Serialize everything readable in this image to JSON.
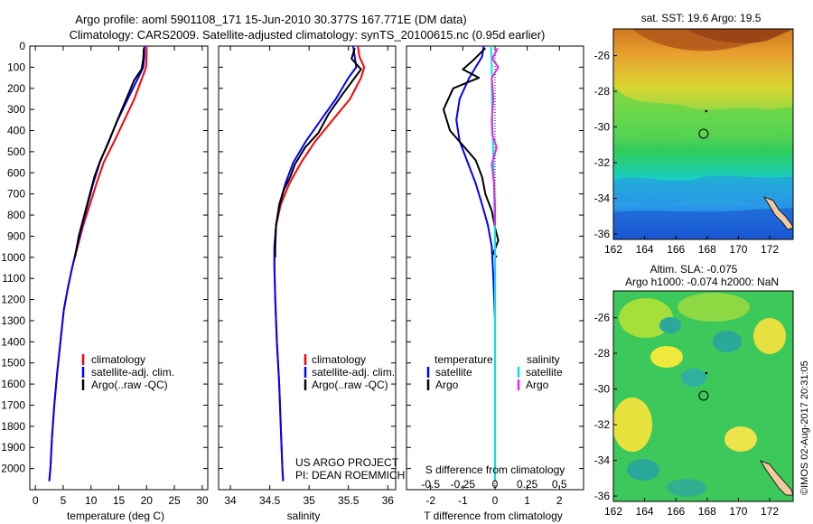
{
  "header": {
    "line1": "Argo profile: aoml 5901108_171 15-Jun-2010 30.377S 167.771E (DM data)",
    "line2": "Climatology: CARS2009. Satellite-adjusted climatology: synTS_20100615.nc (0.95d earlier)"
  },
  "colors": {
    "climatology": "#ff0000",
    "satellite": "#0000ff",
    "argo": "#000000",
    "sal_satellite": "#00e5ee",
    "sal_argo": "#ee22ee"
  },
  "chart_data": [
    {
      "type": "line",
      "xlabel": "temperature (deg C)",
      "ylabel": "",
      "xlim": [
        -1,
        31
      ],
      "ylim": [
        2100,
        0
      ],
      "xticks": [
        0,
        5,
        10,
        15,
        20,
        25,
        30
      ],
      "yticks": [
        0,
        100,
        200,
        300,
        400,
        500,
        600,
        700,
        800,
        900,
        1000,
        1100,
        1200,
        1300,
        1400,
        1500,
        1600,
        1700,
        1800,
        1900,
        2000
      ],
      "legend": [
        "climatology",
        "satellite-adj. clim.",
        "Argo(..raw -QC)"
      ],
      "legend_position": "lower-right",
      "series": [
        {
          "name": "climatology",
          "color": "#ff0000",
          "points": [
            [
              20.0,
              0
            ],
            [
              20.0,
              50
            ],
            [
              19.9,
              100
            ],
            [
              19.2,
              150
            ],
            [
              17.8,
              250
            ],
            [
              16.0,
              350
            ],
            [
              14.2,
              450
            ],
            [
              12.3,
              550
            ],
            [
              11.0,
              650
            ],
            [
              9.8,
              750
            ],
            [
              8.6,
              850
            ],
            [
              7.6,
              950
            ],
            [
              6.6,
              1050
            ],
            [
              5.8,
              1150
            ],
            [
              5.1,
              1250
            ],
            [
              4.5,
              1400
            ],
            [
              3.9,
              1550
            ],
            [
              3.4,
              1700
            ],
            [
              3.0,
              1850
            ],
            [
              2.7,
              2000
            ],
            [
              2.5,
              2060
            ]
          ]
        },
        {
          "name": "satellite-adj. clim.",
          "color": "#0000ff",
          "points": [
            [
              19.6,
              0
            ],
            [
              19.6,
              50
            ],
            [
              19.4,
              100
            ],
            [
              18.5,
              150
            ],
            [
              16.6,
              250
            ],
            [
              14.8,
              350
            ],
            [
              13.2,
              450
            ],
            [
              11.6,
              550
            ],
            [
              10.4,
              650
            ],
            [
              9.4,
              750
            ],
            [
              8.4,
              850
            ],
            [
              7.5,
              950
            ],
            [
              6.6,
              1050
            ],
            [
              5.8,
              1150
            ],
            [
              5.1,
              1250
            ],
            [
              4.5,
              1400
            ],
            [
              3.9,
              1550
            ],
            [
              3.4,
              1700
            ],
            [
              3.0,
              1850
            ],
            [
              2.7,
              2000
            ],
            [
              2.5,
              2060
            ]
          ]
        },
        {
          "name": "Argo(..raw -QC)",
          "color": "#000000",
          "points": [
            [
              19.5,
              10
            ],
            [
              19.4,
              60
            ],
            [
              19.1,
              110
            ],
            [
              17.8,
              160
            ],
            [
              16.2,
              260
            ],
            [
              14.6,
              360
            ],
            [
              13.1,
              460
            ],
            [
              11.7,
              540
            ],
            [
              10.6,
              620
            ],
            [
              9.6,
              720
            ],
            [
              8.6,
              820
            ],
            [
              7.8,
              900
            ],
            [
              7.1,
              1000
            ]
          ]
        }
      ]
    },
    {
      "type": "line",
      "xlabel": "salinity",
      "ylabel": "",
      "xlim": [
        33.85,
        36.1
      ],
      "ylim": [
        2100,
        0
      ],
      "xticks": [
        34,
        34.5,
        35,
        35.5,
        36
      ],
      "xtick_labels": [
        "34",
        "34.5",
        "35",
        "35.5",
        "36"
      ],
      "legend": [
        "climatology",
        "satellite-adj. clim.",
        "Argo(..raw -QC)"
      ],
      "legend_position": "lower-right",
      "annotations": [
        "US ARGO PROJECT",
        "PI: DEAN ROEMMICH"
      ],
      "series": [
        {
          "name": "climatology",
          "color": "#ff0000",
          "points": [
            [
              35.62,
              0
            ],
            [
              35.64,
              50
            ],
            [
              35.7,
              100
            ],
            [
              35.66,
              150
            ],
            [
              35.52,
              250
            ],
            [
              35.3,
              350
            ],
            [
              35.08,
              450
            ],
            [
              34.9,
              550
            ],
            [
              34.75,
              650
            ],
            [
              34.64,
              750
            ],
            [
              34.58,
              850
            ],
            [
              34.56,
              950
            ],
            [
              34.56,
              1050
            ],
            [
              34.57,
              1200
            ],
            [
              34.59,
              1400
            ],
            [
              34.62,
              1600
            ],
            [
              34.64,
              1800
            ],
            [
              34.66,
              2000
            ],
            [
              34.67,
              2060
            ]
          ]
        },
        {
          "name": "satellite-adj. clim.",
          "color": "#0000ff",
          "points": [
            [
              35.56,
              0
            ],
            [
              35.58,
              50
            ],
            [
              35.6,
              100
            ],
            [
              35.5,
              150
            ],
            [
              35.34,
              250
            ],
            [
              35.15,
              350
            ],
            [
              34.96,
              450
            ],
            [
              34.8,
              550
            ],
            [
              34.7,
              650
            ],
            [
              34.62,
              750
            ],
            [
              34.58,
              850
            ],
            [
              34.56,
              950
            ],
            [
              34.56,
              1050
            ],
            [
              34.57,
              1200
            ],
            [
              34.59,
              1400
            ],
            [
              34.62,
              1600
            ],
            [
              34.64,
              1800
            ],
            [
              34.66,
              2000
            ],
            [
              34.67,
              2060
            ]
          ]
        },
        {
          "name": "Argo(..raw -QC)",
          "color": "#000000",
          "points": [
            [
              35.58,
              10
            ],
            [
              35.54,
              60
            ],
            [
              35.66,
              110
            ],
            [
              35.56,
              160
            ],
            [
              35.42,
              230
            ],
            [
              35.25,
              320
            ],
            [
              35.12,
              410
            ],
            [
              34.95,
              480
            ],
            [
              34.82,
              560
            ],
            [
              34.76,
              620
            ],
            [
              34.68,
              680
            ],
            [
              34.62,
              760
            ],
            [
              34.58,
              850
            ],
            [
              34.57,
              950
            ],
            [
              34.57,
              1000
            ]
          ]
        }
      ]
    },
    {
      "type": "line",
      "xlabel": "T difference from climatology",
      "title": "S difference from climatology",
      "xlim": [
        -2.75,
        2.75
      ],
      "ylim": [
        2100,
        0
      ],
      "xticks": [
        -2,
        -1,
        0,
        1,
        2
      ],
      "s_tick_labels": [
        "-0.5",
        "-0.25",
        "0",
        "0.25",
        "0.5"
      ],
      "legend": [
        "temperature",
        "satellite",
        "Argo",
        "salinity",
        "satellite",
        "Argo"
      ],
      "legend_position": "lower",
      "series": [
        {
          "name": "temperature satellite",
          "color": "#0000ff",
          "points": [
            [
              -0.35,
              0
            ],
            [
              -0.4,
              50
            ],
            [
              -0.6,
              100
            ],
            [
              -0.8,
              150
            ],
            [
              -1.1,
              250
            ],
            [
              -1.2,
              350
            ],
            [
              -1.1,
              450
            ],
            [
              -0.85,
              550
            ],
            [
              -0.6,
              650
            ],
            [
              -0.4,
              750
            ],
            [
              -0.22,
              850
            ],
            [
              -0.1,
              950
            ],
            [
              -0.05,
              1100
            ],
            [
              0,
              1300
            ],
            [
              0,
              1500
            ],
            [
              0,
              1700
            ],
            [
              0,
              1900
            ],
            [
              0,
              2060
            ]
          ]
        },
        {
          "name": "temperature Argo",
          "color": "#000000",
          "points": [
            [
              -0.3,
              10
            ],
            [
              -0.7,
              70
            ],
            [
              -1.0,
              110
            ],
            [
              -0.5,
              150
            ],
            [
              -1.3,
              200
            ],
            [
              -1.6,
              300
            ],
            [
              -1.4,
              400
            ],
            [
              -1.0,
              470
            ],
            [
              -0.6,
              540
            ],
            [
              -0.4,
              620
            ],
            [
              -0.3,
              700
            ],
            [
              -0.1,
              780
            ],
            [
              0,
              860
            ],
            [
              0.1,
              920
            ],
            [
              -0.05,
              980
            ],
            [
              0.05,
              1000
            ]
          ]
        },
        {
          "name": "salinity satellite",
          "color": "#00e5ee",
          "points": [
            [
              -0.12,
              0
            ],
            [
              -0.1,
              100
            ],
            [
              -0.1,
              200
            ],
            [
              -0.08,
              350
            ],
            [
              -0.06,
              500
            ],
            [
              -0.03,
              700
            ],
            [
              0,
              900
            ],
            [
              0,
              1100
            ],
            [
              0,
              1400
            ],
            [
              0,
              1700
            ],
            [
              0,
              2060
            ]
          ]
        },
        {
          "name": "salinity Argo",
          "color": "#ee22ee",
          "points": [
            [
              0.08,
              10
            ],
            [
              -0.08,
              60
            ],
            [
              0.1,
              100
            ],
            [
              -0.1,
              150
            ],
            [
              -0.05,
              250
            ],
            [
              -0.1,
              350
            ],
            [
              -0.08,
              420
            ],
            [
              0.05,
              480
            ],
            [
              -0.1,
              560
            ],
            [
              -0.03,
              650
            ],
            [
              0,
              750
            ],
            [
              0,
              850
            ]
          ]
        }
      ]
    },
    {
      "type": "heatmap",
      "title": "sat. SST: 19.6  Argo: 19.5",
      "xticks": [
        162,
        164,
        166,
        168,
        170,
        172
      ],
      "yticks": [
        -26,
        -28,
        -30,
        -32,
        -34,
        -36
      ],
      "xlim": [
        162,
        173.5
      ],
      "ylim": [
        -36.3,
        -24.5
      ],
      "float_position": [
        167.771,
        -30.377
      ]
    },
    {
      "type": "heatmap",
      "title": "Altim. SLA: -0.075",
      "subtitle": "Argo h1000: -0.074  h2000: NaN",
      "xticks": [
        162,
        164,
        166,
        168,
        170,
        172
      ],
      "yticks": [
        -26,
        -28,
        -30,
        -32,
        -34,
        -36
      ],
      "xlim": [
        162,
        173.5
      ],
      "ylim": [
        -36.3,
        -24.5
      ],
      "float_position": [
        167.771,
        -30.377
      ]
    }
  ],
  "legend_text": {
    "clim": "climatology",
    "sat": "satellite-adj. clim.",
    "argo": "Argo(..raw -QC)",
    "temperature": "temperature",
    "salinity": "salinity",
    "satellite": "satellite",
    "argo_short": "Argo"
  },
  "credits": {
    "project": "US ARGO PROJECT",
    "pi": "PI: DEAN ROEMMICH"
  },
  "side_note": "©IMOS 02-Aug-2017 20:31:05"
}
